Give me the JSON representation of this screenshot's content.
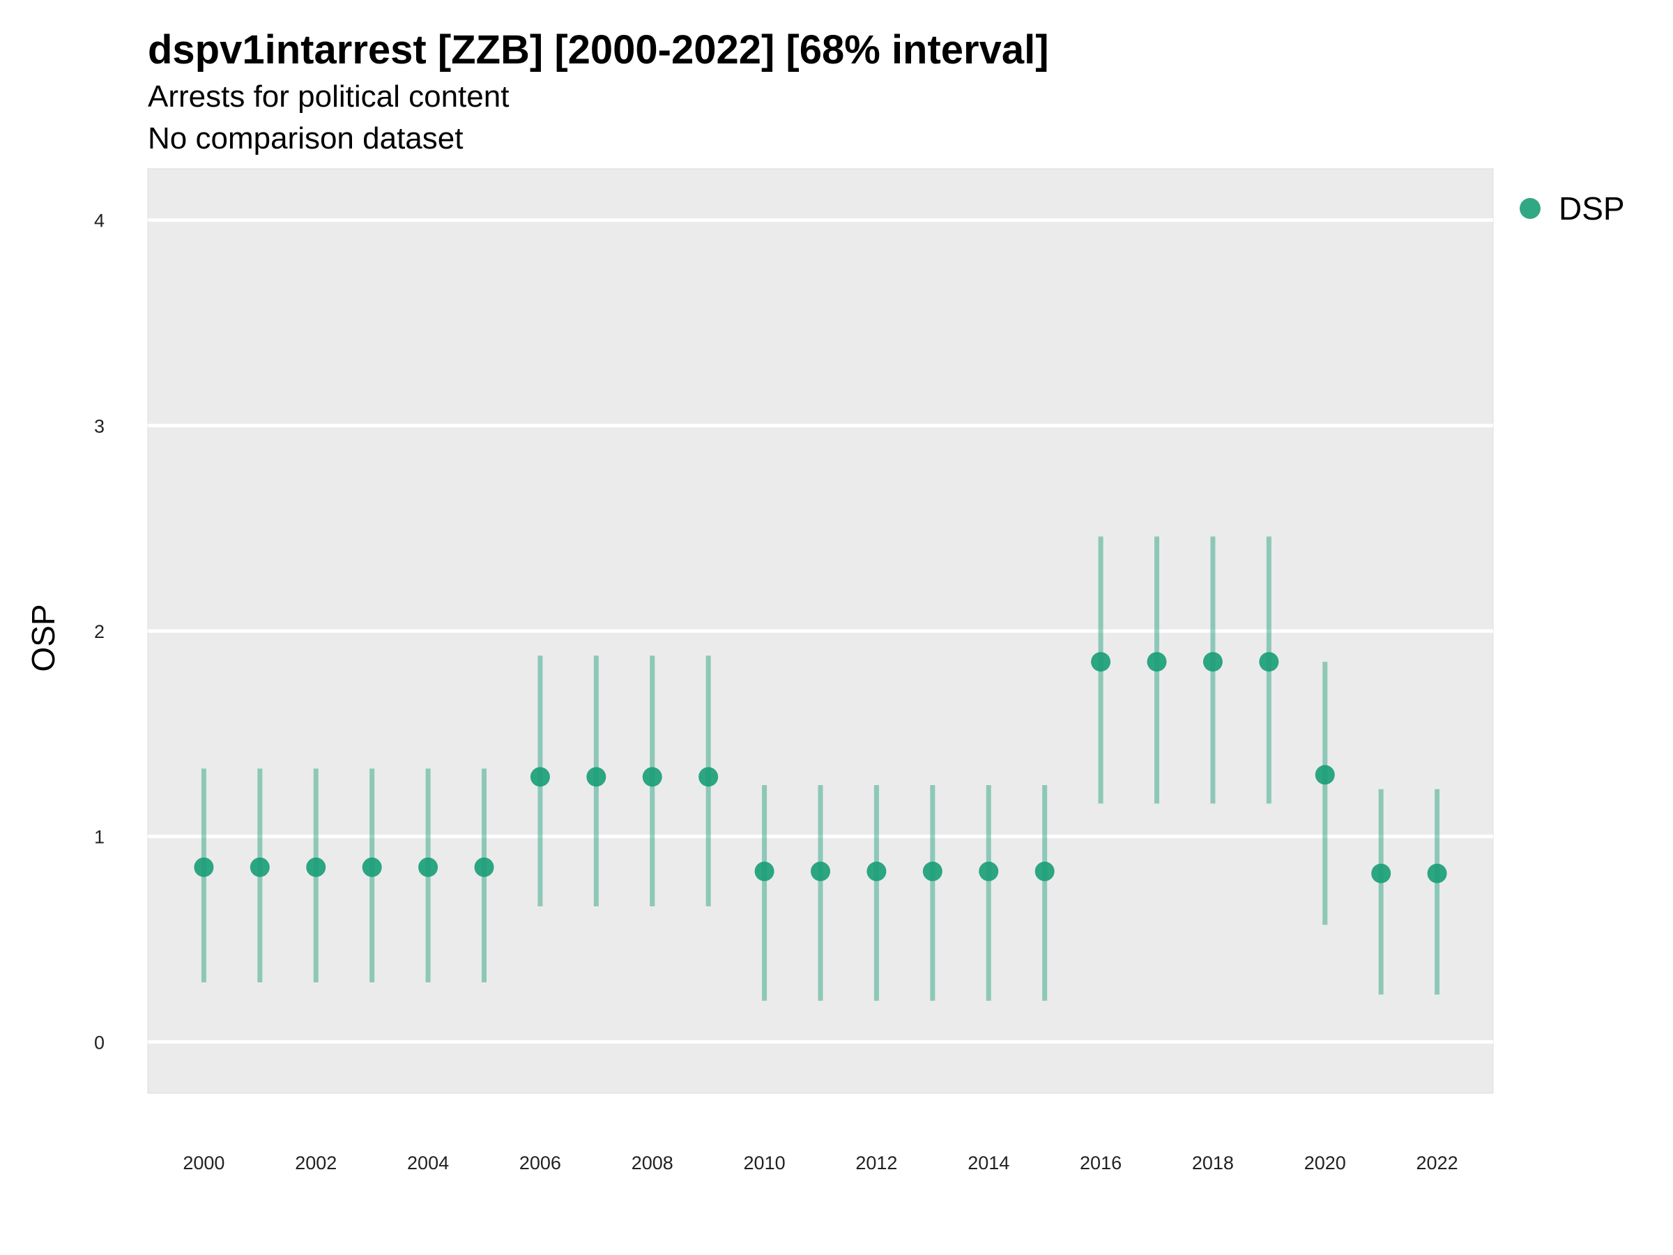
{
  "chart_data": {
    "type": "scatter",
    "title": "dspv1intarrest [ZZB] [2000-2022] [68% interval]",
    "subtitle_lines": [
      "Arrests for political content",
      "No comparison dataset"
    ],
    "xlabel": "",
    "ylabel": "OSP",
    "ylim": [
      -0.25,
      4.25
    ],
    "yticks": [
      0,
      1,
      2,
      3,
      4
    ],
    "xticks": [
      2000,
      2002,
      2004,
      2006,
      2008,
      2010,
      2012,
      2014,
      2016,
      2018,
      2020,
      2022
    ],
    "grid": true,
    "legend_position": "top-right",
    "series": [
      {
        "name": "DSP",
        "color": "#1b9e77",
        "x": [
          2000,
          2001,
          2002,
          2003,
          2004,
          2005,
          2006,
          2007,
          2008,
          2009,
          2010,
          2011,
          2012,
          2013,
          2014,
          2015,
          2016,
          2017,
          2018,
          2019,
          2020,
          2021,
          2022
        ],
        "y": [
          0.85,
          0.85,
          0.85,
          0.85,
          0.85,
          0.85,
          1.29,
          1.29,
          1.29,
          1.29,
          0.83,
          0.83,
          0.83,
          0.83,
          0.83,
          0.83,
          1.85,
          1.85,
          1.85,
          1.85,
          1.3,
          0.82,
          0.82
        ],
        "lower": [
          0.29,
          0.29,
          0.29,
          0.29,
          0.29,
          0.29,
          0.66,
          0.66,
          0.66,
          0.66,
          0.2,
          0.2,
          0.2,
          0.2,
          0.2,
          0.2,
          1.16,
          1.16,
          1.16,
          1.16,
          0.57,
          0.23,
          0.23
        ],
        "upper": [
          1.33,
          1.33,
          1.33,
          1.33,
          1.33,
          1.33,
          1.88,
          1.88,
          1.88,
          1.88,
          1.25,
          1.25,
          1.25,
          1.25,
          1.25,
          1.25,
          2.46,
          2.46,
          2.46,
          2.46,
          1.85,
          1.23,
          1.23
        ]
      }
    ]
  }
}
